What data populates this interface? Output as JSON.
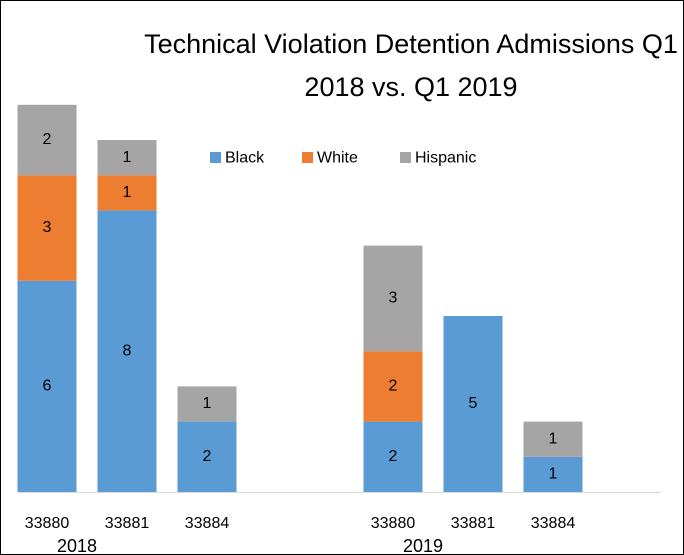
{
  "chart_data": {
    "type": "stacked_bar",
    "title": "Technical Violation Detention Admissions Q1 2018 vs. Q1 2019",
    "group_labels": [
      "2018",
      "2019"
    ],
    "categories": [
      "33880",
      "33881",
      "33884",
      "33880",
      "33881",
      "33884"
    ],
    "series": [
      {
        "name": "Black",
        "color": "#5b9bd5",
        "values": [
          6,
          8,
          2,
          2,
          5,
          1
        ]
      },
      {
        "name": "White",
        "color": "#ed7d31",
        "values": [
          3,
          1,
          null,
          2,
          null,
          null
        ]
      },
      {
        "name": "Hispanic",
        "color": "#a5a5a5",
        "values": [
          2,
          1,
          1,
          3,
          null,
          1
        ]
      }
    ],
    "legend": "top"
  }
}
